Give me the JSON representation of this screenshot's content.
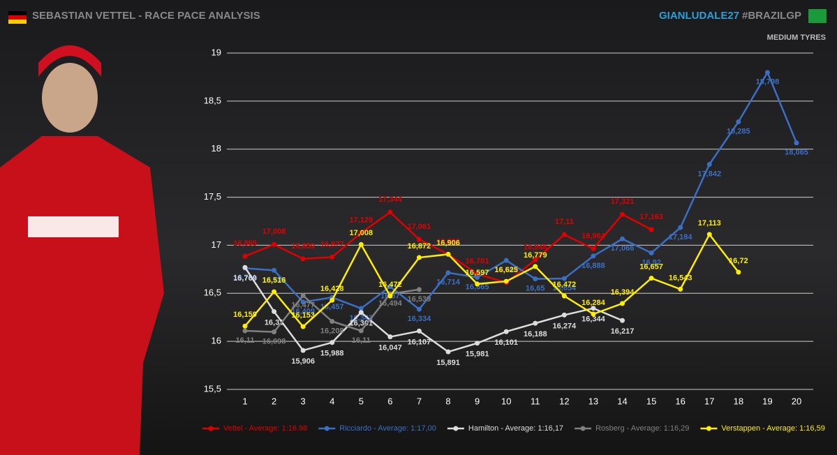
{
  "chart_data": {
    "type": "line",
    "title": "SEBASTIAN VETTEL - RACE PACE ANALYSIS",
    "handle": "GIANLUDALE27",
    "hashtag": "#BRAZILGP",
    "subtitle": "MEDIUM TYRES",
    "categories": [
      1,
      2,
      3,
      4,
      5,
      6,
      7,
      8,
      9,
      10,
      11,
      12,
      13,
      14,
      15,
      16,
      17,
      18,
      19,
      20
    ],
    "ylim": [
      15.5,
      19
    ],
    "yticks": [
      {
        "value": 15.5,
        "label": "15,5"
      },
      16,
      {
        "value": 16.5,
        "label": "16,5"
      },
      17,
      {
        "value": 17.5,
        "label": "17,5"
      },
      18,
      {
        "value": 18.5,
        "label": "18,5"
      },
      19
    ],
    "grid": true,
    "legend": "bottom",
    "series": [
      {
        "name": "Vettel - Average: 1:16.98",
        "color": "#e00000",
        "values": [
          16.885,
          17.008,
          16.859,
          16.877,
          17.129,
          17.344,
          17.061,
          16.906,
          16.701,
          16.611,
          16.848,
          17.11,
          16.964,
          17.321,
          17.163,
          null,
          null,
          null,
          null,
          null
        ],
        "value_labels": [
          "16,885",
          "17,008",
          "16,859",
          "16,877",
          "17,129",
          "17,344",
          "17,061",
          "16,906",
          "16,701",
          "16,611",
          "16,848",
          "17,11",
          "16,964",
          "17,321",
          "17,163",
          null,
          null,
          null,
          null,
          null
        ]
      },
      {
        "name": "Ricciardo - Average: 1:17,00",
        "color": "#3b6fc4",
        "values": [
          16.761,
          16.739,
          16.409,
          16.457,
          16.343,
          16.57,
          16.334,
          16.714,
          16.665,
          16.842,
          16.65,
          16.654,
          16.888,
          17.066,
          16.92,
          17.184,
          17.842,
          18.285,
          18.798,
          18.065
        ],
        "value_labels": [
          "16,761",
          "16,739",
          "16,409",
          "16,457",
          "16,343",
          "16,57",
          "16,334",
          "16,714",
          "16,665",
          "16,842",
          "16,65",
          "16,654",
          "16,888",
          "17,066",
          "16,92",
          "17,184",
          "17,842",
          "18,285",
          "18,798",
          "18,065"
        ]
      },
      {
        "name": "Hamilton - Average: 1:16,17",
        "color": "#dddddd",
        "values": [
          16.769,
          16.31,
          15.906,
          15.988,
          16.301,
          16.047,
          16.107,
          15.891,
          15.981,
          16.101,
          16.188,
          16.274,
          16.344,
          16.217,
          null,
          null,
          null,
          null,
          null,
          null
        ],
        "value_labels": [
          "16,769",
          "16,31",
          "15,906",
          "15,988",
          "16,301",
          "16,047",
          "16,107",
          "15,891",
          "15,981",
          "16,101",
          "16,188",
          "16,274",
          "16,344",
          "16,217",
          null,
          null,
          null,
          null,
          null,
          null
        ]
      },
      {
        "name": "Rosberg - Average: 1:16,29",
        "color": "#808080",
        "values": [
          16.11,
          16.098,
          16.477,
          16.208,
          16.11,
          16.494,
          16.539,
          null,
          null,
          null,
          null,
          null,
          null,
          null,
          null,
          null,
          null,
          null,
          null,
          null
        ],
        "value_labels": [
          "16,11",
          "16,098",
          "16,477",
          "16,208",
          "16,11",
          "16,494",
          "16,539",
          null,
          null,
          null,
          null,
          null,
          null,
          null,
          null,
          null,
          null,
          null,
          null,
          null
        ]
      },
      {
        "name": "Verstappen - Average: 1:16,59",
        "color": "#ffee00",
        "values": [
          16.159,
          16.516,
          16.153,
          16.428,
          17.008,
          16.472,
          16.872,
          16.906,
          16.597,
          16.625,
          16.779,
          16.472,
          16.284,
          16.394,
          16.657,
          16.543,
          17.113,
          16.72,
          null,
          null
        ],
        "value_labels": [
          "16,159",
          "16,516",
          "16,153",
          "16,428",
          "17,008",
          "16,472",
          "16,872",
          "16,906",
          "16,597",
          "16,625",
          "16,779",
          "16,472",
          "16,284",
          "16,394",
          "16,657",
          "16,543",
          "17,113",
          "16,72",
          null,
          null
        ]
      }
    ]
  }
}
